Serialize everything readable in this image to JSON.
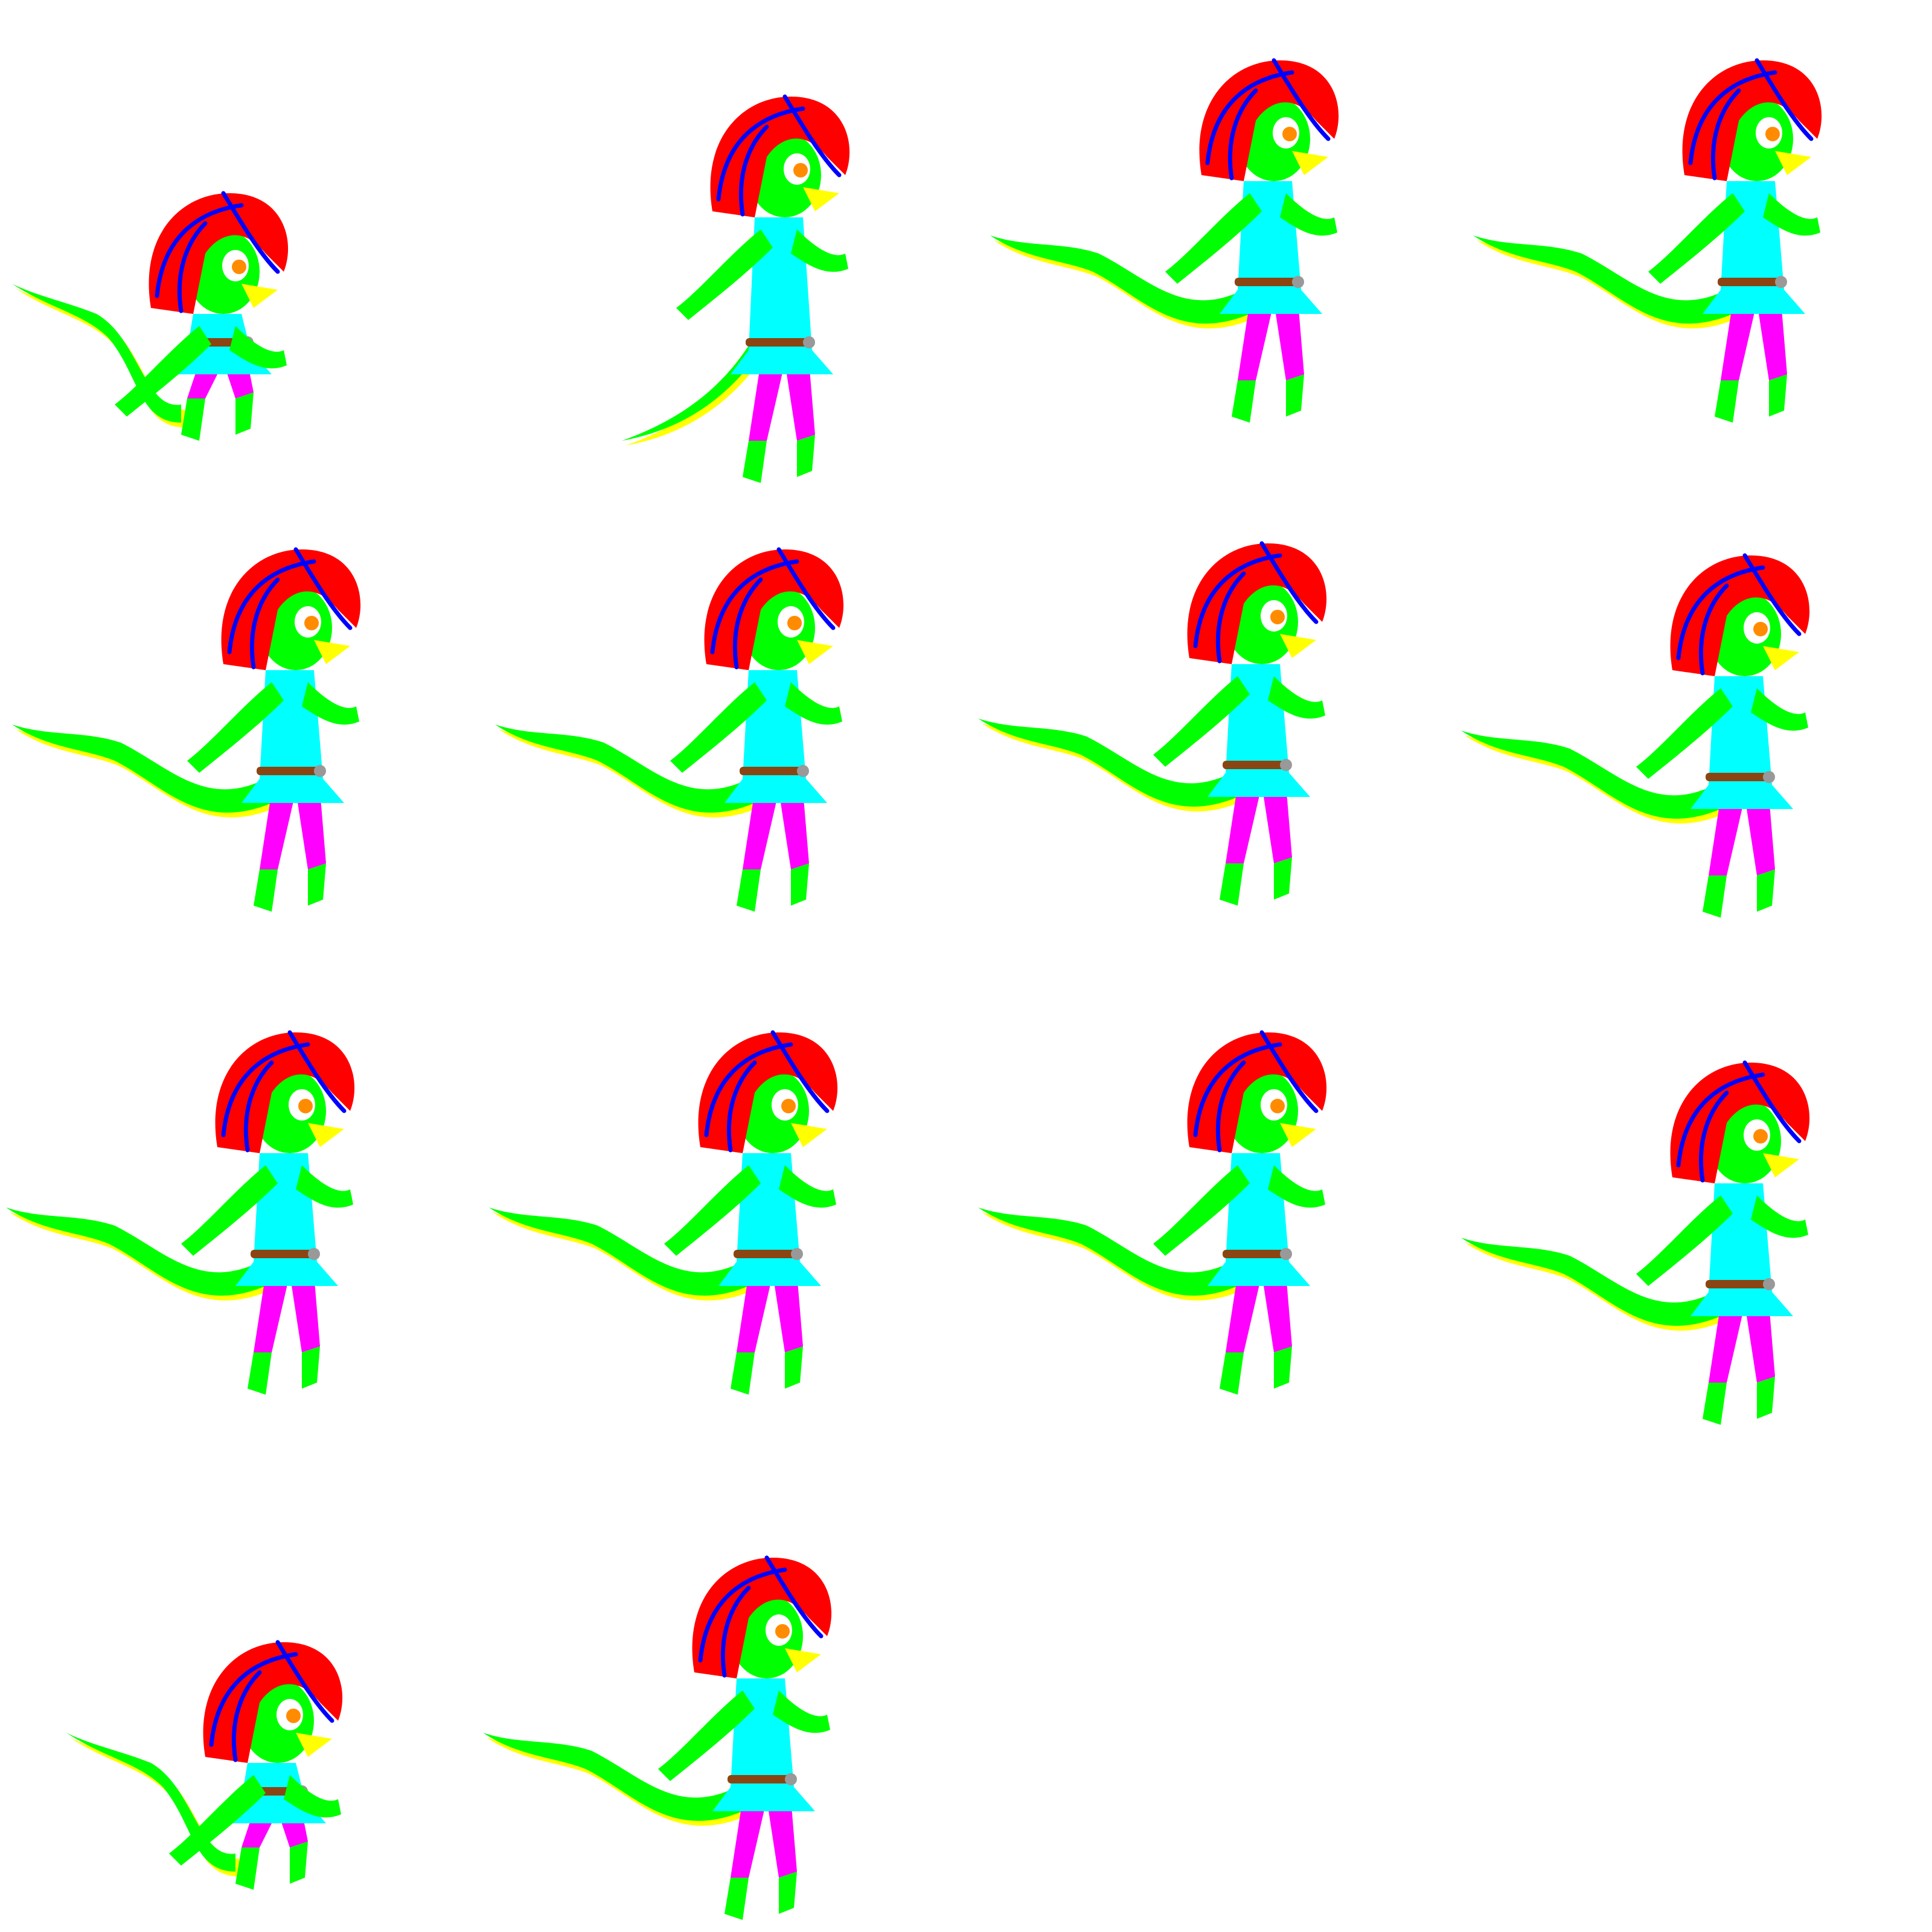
{
  "sprite_sheet": {
    "background": "#ffffff",
    "palette": {
      "skin": "#00ff00",
      "tail_shade": "#ffff00",
      "hair": "#ff0000",
      "hair_lines": "#0000ff",
      "dress": "#00ffff",
      "legs": "#ff00ff",
      "belt": "#8b4513",
      "buckle": "#999999",
      "beak": "#ffff00",
      "eye": "#ff8c00",
      "outline": "#000000"
    },
    "frames": [
      {
        "pose": "crouch"
      },
      {
        "pose": "stand"
      },
      {
        "pose": "leap"
      },
      {
        "pose": "leap"
      },
      {
        "pose": "leap"
      },
      {
        "pose": "leap"
      },
      {
        "pose": "fall"
      },
      {
        "pose": "fly"
      },
      {
        "pose": "fly"
      },
      {
        "pose": "fly"
      },
      {
        "pose": "fly"
      },
      {
        "pose": "fly"
      },
      {
        "pose": "crouch"
      },
      {
        "pose": "land"
      }
    ]
  }
}
